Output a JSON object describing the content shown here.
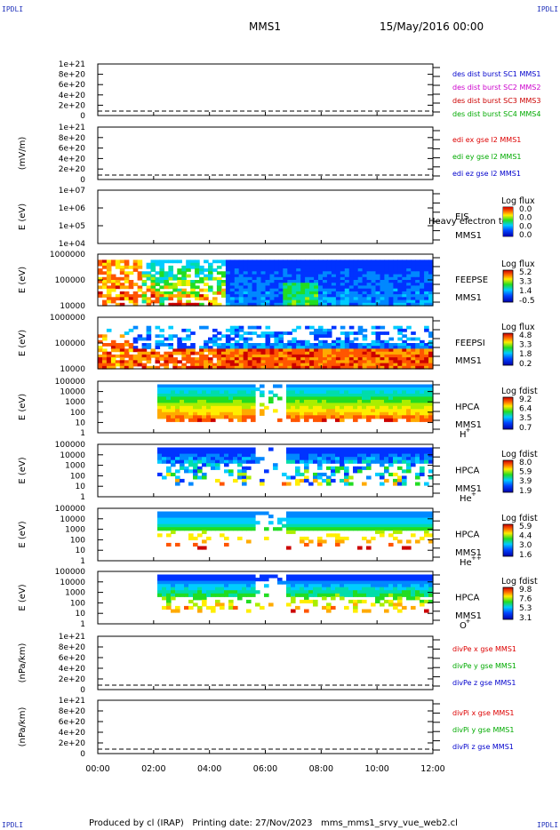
{
  "corners": {
    "tl": "IPDLI",
    "tr": "IPDLI",
    "bl": "IPDLI",
    "br": "IPDLI"
  },
  "header": {
    "mission": "MMS1",
    "datetime": "15/May/2016 00:00"
  },
  "footer": {
    "text": "Produced by cl (IRAP)   Printing date: 27/Nov/2023   mms_mms1_srvy_vue_web2.cl"
  },
  "colors": {
    "mms1": "#0000cc",
    "mms2": "#cc00cc",
    "mms3": "#cc0000",
    "mms4": "#00aa00",
    "x": "#dd0000",
    "y": "#00aa00",
    "z": "#0000cc"
  },
  "chart_data": [
    {
      "type": "line",
      "ylabel": "",
      "yticks": [
        "1e+21",
        "8e+20",
        "6e+20",
        "4e+20",
        "2e+20",
        "0"
      ],
      "ylim": [
        0,
        1e+21
      ],
      "legend": [
        {
          "label": "des dist burst SC1 MMS1",
          "color": "#0000cc"
        },
        {
          "label": "des dist burst SC2 MMS2",
          "color": "#cc00cc"
        },
        {
          "label": "des dist burst SC3 MMS3",
          "color": "#cc0000"
        },
        {
          "label": "des dist burst SC4 MMS4",
          "color": "#00aa00"
        }
      ],
      "series": []
    },
    {
      "type": "line",
      "ylabel": "(mV/m)",
      "yticks": [
        "1e+21",
        "8e+20",
        "6e+20",
        "4e+20",
        "2e+20",
        "0"
      ],
      "ylim": [
        0,
        1e+21
      ],
      "legend": [
        {
          "label": "edi ex gse l2 MMS1",
          "color": "#dd0000"
        },
        {
          "label": "edi ey gse l2 MMS1",
          "color": "#00aa00"
        },
        {
          "label": "edi ez gse l2 MMS1",
          "color": "#0000cc"
        }
      ],
      "series": []
    },
    {
      "type": "heatmap",
      "ylabel": "E (eV)",
      "yticks": [
        "1e+07",
        "1e+06",
        "1e+05",
        "1e+04"
      ],
      "scale": "log",
      "instrument": [
        "EIS",
        "MMS1"
      ],
      "overlay": "Heavy electron to",
      "cbar_title": "Log flux",
      "cbar_ticks": [
        "0.0",
        "0.0",
        "0.0",
        "0.0"
      ]
    },
    {
      "type": "heatmap",
      "ylabel": "E (eV)",
      "yticks": [
        "1000000",
        "100000",
        "10000"
      ],
      "scale": "log",
      "instrument": [
        "FEEPSE",
        "MMS1"
      ],
      "cbar_title": "Log flux",
      "cbar_ticks": [
        "5.2",
        "3.3",
        "1.4",
        "-0.5"
      ]
    },
    {
      "type": "heatmap",
      "ylabel": "E (eV)",
      "yticks": [
        "1000000",
        "100000",
        "10000"
      ],
      "scale": "log",
      "instrument": [
        "FEEPSI",
        "MMS1"
      ],
      "cbar_title": "Log flux",
      "cbar_ticks": [
        "4.8",
        "3.3",
        "1.8",
        "0.2"
      ]
    },
    {
      "type": "heatmap",
      "ylabel": "E (eV)",
      "yticks": [
        "100000",
        "10000",
        "1000",
        "100",
        "10",
        "1"
      ],
      "scale": "log",
      "instrument": [
        "HPCA",
        "MMS1"
      ],
      "species": "H",
      "species_charge": "+",
      "cbar_title": "Log fdist",
      "cbar_ticks": [
        "9.2",
        "6.4",
        "3.5",
        "0.7"
      ]
    },
    {
      "type": "heatmap",
      "ylabel": "E (eV)",
      "yticks": [
        "100000",
        "10000",
        "1000",
        "100",
        "10",
        "1"
      ],
      "scale": "log",
      "instrument": [
        "HPCA",
        "MMS1"
      ],
      "species": "He",
      "species_charge": "+",
      "cbar_title": "Log fdist",
      "cbar_ticks": [
        "8.0",
        "5.9",
        "3.9",
        "1.9"
      ]
    },
    {
      "type": "heatmap",
      "ylabel": "E (eV)",
      "yticks": [
        "100000",
        "10000",
        "1000",
        "100",
        "10",
        "1"
      ],
      "scale": "log",
      "instrument": [
        "HPCA",
        "MMS1"
      ],
      "species": "He",
      "species_charge": "++",
      "cbar_title": "Log fdist",
      "cbar_ticks": [
        "5.9",
        "4.4",
        "3.0",
        "1.6"
      ]
    },
    {
      "type": "heatmap",
      "ylabel": "E (eV)",
      "yticks": [
        "100000",
        "10000",
        "1000",
        "100",
        "10",
        "1"
      ],
      "scale": "log",
      "instrument": [
        "HPCA",
        "MMS1"
      ],
      "species": "O",
      "species_charge": "+",
      "cbar_title": "Log fdist",
      "cbar_ticks": [
        "9.8",
        "7.6",
        "5.3",
        "3.1"
      ]
    },
    {
      "type": "line",
      "ylabel": "(nPa/km)",
      "yticks": [
        "1e+21",
        "8e+20",
        "6e+20",
        "4e+20",
        "2e+20",
        "0"
      ],
      "ylim": [
        0,
        1e+21
      ],
      "legend": [
        {
          "label": "divPe x gse MMS1",
          "color": "#dd0000"
        },
        {
          "label": "divPe y gse MMS1",
          "color": "#00aa00"
        },
        {
          "label": "divPe z gse MMS1",
          "color": "#0000cc"
        }
      ],
      "series": []
    },
    {
      "type": "line",
      "ylabel": "(nPa/km)",
      "yticks": [
        "1e+21",
        "8e+20",
        "6e+20",
        "4e+20",
        "2e+20",
        "0"
      ],
      "ylim": [
        0,
        1e+21
      ],
      "legend": [
        {
          "label": "divPi x gse MMS1",
          "color": "#dd0000"
        },
        {
          "label": "divPi y gse MMS1",
          "color": "#00aa00"
        },
        {
          "label": "divPi z gse MMS1",
          "color": "#0000cc"
        }
      ],
      "series": []
    }
  ],
  "time_axis": {
    "labels": [
      "00:00",
      "02:00",
      "04:00",
      "06:00",
      "08:00",
      "10:00",
      "12:00"
    ],
    "range_hours": [
      0,
      12
    ]
  }
}
